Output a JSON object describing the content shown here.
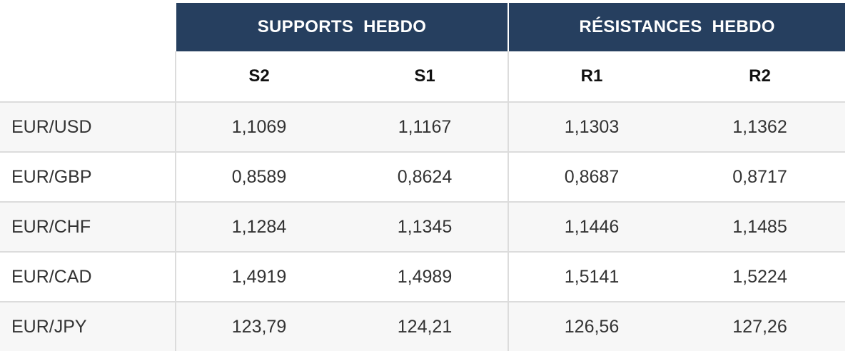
{
  "header": {
    "supports_label": "SUPPORTS  HEBDO",
    "resistances_label": "RÉSISTANCES  HEBDO",
    "columns": [
      "S2",
      "S1",
      "R1",
      "R2"
    ]
  },
  "rows": [
    {
      "pair": "EUR/USD",
      "s2": "1,1069",
      "s1": "1,1167",
      "r1": "1,1303",
      "r2": "1,1362"
    },
    {
      "pair": "EUR/GBP",
      "s2": "0,8589",
      "s1": "0,8624",
      "r1": "0,8687",
      "r2": "0,8717"
    },
    {
      "pair": "EUR/CHF",
      "s2": "1,1284",
      "s1": "1,1345",
      "r1": "1,1446",
      "r2": "1,1485"
    },
    {
      "pair": "EUR/CAD",
      "s2": "1,4919",
      "s1": "1,4989",
      "r1": "1,5141",
      "r2": "1,5224"
    },
    {
      "pair": "EUR/JPY",
      "s2": "123,79",
      "s1": "124,21",
      "r1": "126,56",
      "r2": "127,26"
    }
  ],
  "colors": {
    "header_background": "#263f5f",
    "header_text": "#ffffff",
    "row_alt_background": "#f7f7f7",
    "grid_line": "#dcdcdc"
  }
}
